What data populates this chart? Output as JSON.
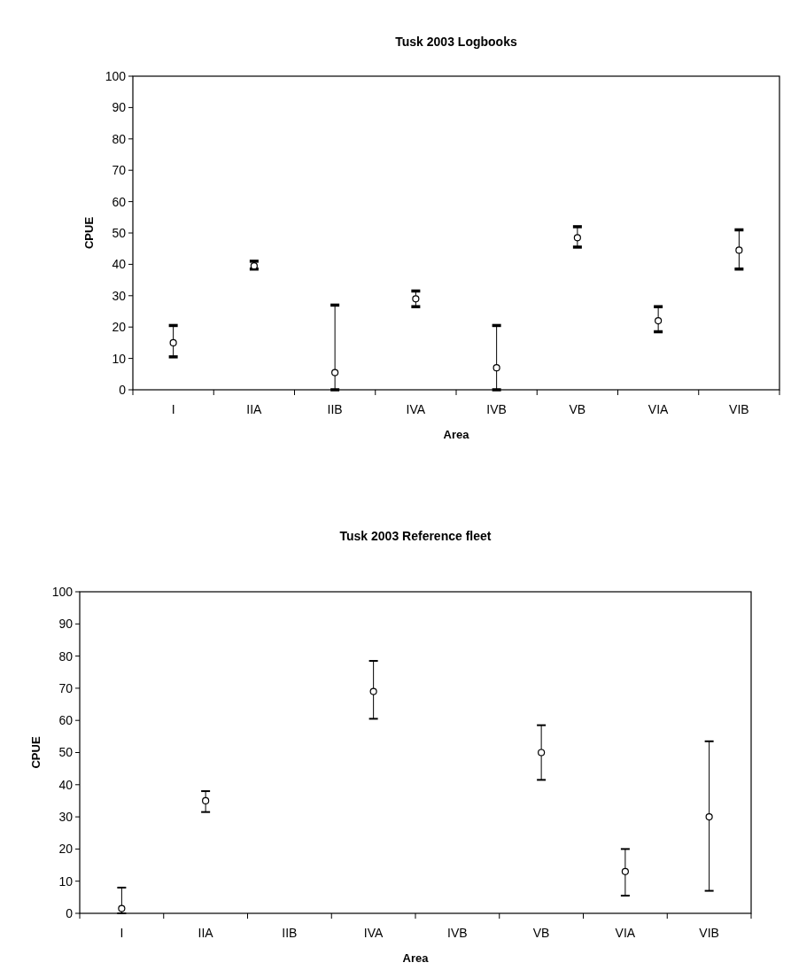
{
  "chart_data": [
    {
      "type": "scatter",
      "title": "Tusk 2003 Logbooks",
      "xlabel": "Area",
      "ylabel": "CPUE",
      "categories": [
        "I",
        "IIA",
        "IIB",
        "IVA",
        "IVB",
        "VB",
        "VIA",
        "VIB"
      ],
      "values": [
        15,
        39.5,
        5.5,
        29,
        7,
        48.5,
        22,
        44.5
      ],
      "errors": [
        [
          10.5,
          20.5
        ],
        [
          38.5,
          41
        ],
        [
          0,
          27
        ],
        [
          26.5,
          31.5
        ],
        [
          0,
          20.5
        ],
        [
          45.5,
          52
        ],
        [
          18.5,
          26.5
        ],
        [
          38.5,
          51
        ]
      ],
      "color": "#000000",
      "marker": "circle",
      "ylim": [
        0,
        100
      ],
      "yticks": [
        0,
        10,
        20,
        30,
        40,
        50,
        60,
        70,
        80,
        90,
        100
      ],
      "grid": false
    },
    {
      "type": "scatter",
      "title": "Tusk 2003 Reference fleet",
      "xlabel": "Area",
      "ylabel": "CPUE",
      "categories": [
        "I",
        "IIA",
        "IIB",
        "IVA",
        "IVB",
        "VB",
        "VIA",
        "VIB"
      ],
      "values": [
        1.5,
        35,
        null,
        69,
        null,
        50,
        13,
        30
      ],
      "errors": [
        [
          0,
          8
        ],
        [
          31.5,
          38
        ],
        null,
        [
          60.5,
          78.5
        ],
        null,
        [
          41.5,
          58.5
        ],
        [
          5.5,
          20
        ],
        [
          7,
          53.5
        ]
      ],
      "color": "#000000",
      "marker": "circle",
      "ylim": [
        0,
        100
      ],
      "yticks": [
        0,
        10,
        20,
        30,
        40,
        50,
        60,
        70,
        80,
        90,
        100
      ],
      "grid": false
    }
  ]
}
